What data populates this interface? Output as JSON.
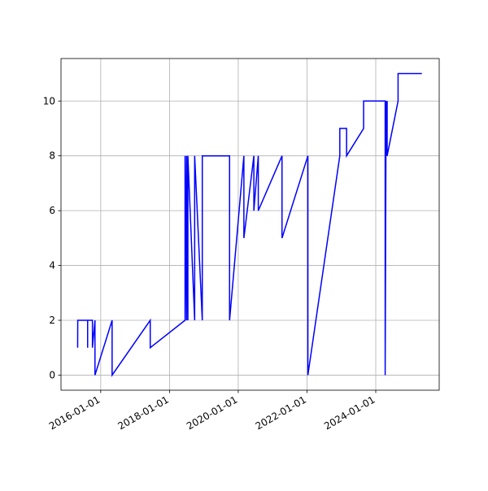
{
  "chart_data": {
    "type": "line",
    "x": [
      "2015-05-01",
      "2015-05-02",
      "2015-08-15",
      "2015-08-15",
      "2015-08-15",
      "2015-10-05",
      "2015-10-05",
      "2015-11-01",
      "2015-11-01",
      "2016-05-01",
      "2016-05-01",
      "2017-06-10",
      "2017-06-10",
      "2018-06-15",
      "2018-06-15",
      "2018-07-01",
      "2018-07-01",
      "2018-07-15",
      "2018-07-15",
      "2018-09-25",
      "2018-09-25",
      "2018-12-15",
      "2018-12-15",
      "2019-10-01",
      "2019-10-01",
      "2020-03-01",
      "2020-03-01",
      "2020-06-15",
      "2020-06-15",
      "2020-08-01",
      "2020-08-01",
      "2021-04-10",
      "2021-04-10",
      "2022-01-10",
      "2022-01-10",
      "2022-12-15",
      "2022-12-15",
      "2023-02-25",
      "2023-02-25",
      "2023-08-25",
      "2023-08-25",
      "2024-04-10",
      "2024-04-10",
      "2024-04-20",
      "2024-04-20",
      "2024-05-01",
      "2024-05-01",
      "2024-08-25",
      "2024-08-25",
      "2025-05-05"
    ],
    "values": [
      1,
      2,
      2,
      1,
      2,
      2,
      1,
      2,
      0,
      2,
      0,
      2,
      1,
      2,
      8,
      2,
      8,
      2,
      8,
      2,
      8,
      2,
      8,
      8,
      2,
      8,
      5,
      8,
      6,
      8,
      6,
      8,
      5,
      8,
      0,
      8,
      9,
      9,
      8,
      9,
      10,
      10,
      0,
      10,
      8,
      10,
      8,
      10,
      11,
      11
    ],
    "color": "#0000ff",
    "xlim": [
      "2014-11-05",
      "2025-11-05"
    ],
    "xticks": [
      "2016-01-01",
      "2018-01-01",
      "2020-01-01",
      "2022-01-01",
      "2024-01-01"
    ],
    "ylim": [
      -0.55,
      11.55
    ],
    "yticks": [
      0,
      2,
      4,
      6,
      8,
      10
    ],
    "grid": true
  }
}
